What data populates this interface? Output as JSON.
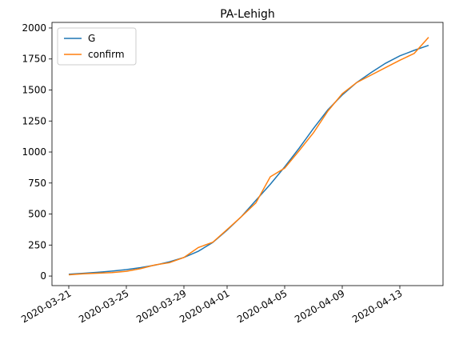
{
  "chart_data": {
    "type": "line",
    "title": "PA-Lehigh",
    "x": [
      "2020-03-21",
      "2020-03-22",
      "2020-03-23",
      "2020-03-24",
      "2020-03-25",
      "2020-03-26",
      "2020-03-27",
      "2020-03-28",
      "2020-03-29",
      "2020-03-30",
      "2020-03-31",
      "2020-04-01",
      "2020-04-02",
      "2020-04-03",
      "2020-04-04",
      "2020-04-05",
      "2020-04-06",
      "2020-04-07",
      "2020-04-08",
      "2020-04-09",
      "2020-04-10",
      "2020-04-11",
      "2020-04-12",
      "2020-04-13",
      "2020-04-14",
      "2020-04-15"
    ],
    "series": [
      {
        "name": "G",
        "color": "#1f77b4",
        "values": [
          15,
          22,
          30,
          40,
          52,
          68,
          88,
          115,
          150,
          200,
          270,
          370,
          480,
          610,
          740,
          880,
          1030,
          1190,
          1340,
          1460,
          1560,
          1640,
          1715,
          1775,
          1820,
          1860
        ]
      },
      {
        "name": "confirm",
        "color": "#ff7f0e",
        "values": [
          10,
          18,
          23,
          28,
          38,
          60,
          90,
          108,
          150,
          230,
          272,
          375,
          480,
          590,
          800,
          870,
          1010,
          1155,
          1330,
          1470,
          1560,
          1620,
          1680,
          1740,
          1795,
          1925
        ]
      }
    ],
    "xlim": [
      "2020-03-19T20:00:00Z",
      "2020-04-16T00:00:00Z"
    ],
    "xticks": [
      "2020-03-21",
      "2020-03-25",
      "2020-03-29",
      "2020-04-01",
      "2020-04-05",
      "2020-04-09",
      "2020-04-13"
    ],
    "ylim": [
      -77,
      2045
    ],
    "yticks": [
      0,
      250,
      500,
      750,
      1000,
      1250,
      1500,
      1750,
      2000
    ],
    "legend": "upper left",
    "grid": false
  }
}
